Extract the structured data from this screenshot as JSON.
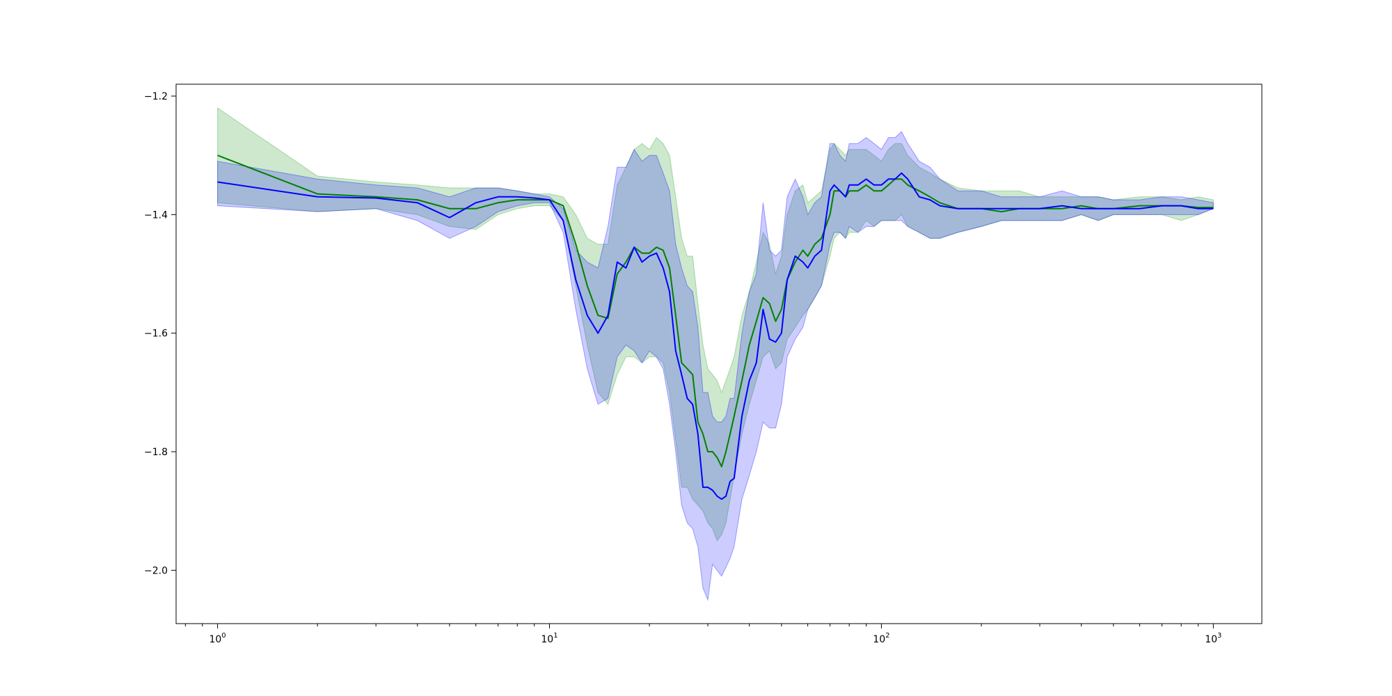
{
  "chart_data": {
    "type": "line",
    "title": "",
    "xlabel": "",
    "ylabel": "",
    "xscale": "log",
    "xlim": [
      0.75,
      1400
    ],
    "ylim": [
      -2.09,
      -1.18
    ],
    "grid": false,
    "legend": "none",
    "x_ticks": [
      {
        "value": 1,
        "base": "10",
        "exp": "0"
      },
      {
        "value": 10,
        "base": "10",
        "exp": "1"
      },
      {
        "value": 100,
        "base": "10",
        "exp": "2"
      },
      {
        "value": 1000,
        "base": "10",
        "exp": "3"
      }
    ],
    "y_ticks": [
      {
        "value": -1.2,
        "label": "−1.2"
      },
      {
        "value": -1.4,
        "label": "−1.4"
      },
      {
        "value": -1.6,
        "label": "−1.6"
      },
      {
        "value": -1.8,
        "label": "−1.8"
      },
      {
        "value": -2.0,
        "label": "−2.0"
      }
    ],
    "series": [
      {
        "color": "#008000",
        "band_color": "#2ca02c",
        "band_opacity": 0.24,
        "x": [
          1,
          2,
          3,
          4,
          5,
          6,
          7,
          8,
          9,
          10,
          11,
          12,
          13,
          14,
          15,
          16,
          17,
          18,
          19,
          20,
          21,
          22,
          23,
          24,
          25,
          26,
          27,
          28,
          29,
          30,
          31,
          32,
          33,
          34,
          35,
          36,
          38,
          40,
          42,
          44,
          46,
          48,
          50,
          52,
          55,
          58,
          60,
          63,
          66,
          70,
          72,
          75,
          78,
          80,
          85,
          90,
          95,
          100,
          105,
          110,
          115,
          120,
          130,
          140,
          150,
          170,
          200,
          230,
          260,
          300,
          350,
          400,
          450,
          500,
          600,
          700,
          800,
          900,
          1000
        ],
        "y": [
          -1.3,
          -1.365,
          -1.37,
          -1.375,
          -1.39,
          -1.39,
          -1.38,
          -1.375,
          -1.375,
          -1.375,
          -1.385,
          -1.45,
          -1.52,
          -1.57,
          -1.575,
          -1.5,
          -1.48,
          -1.455,
          -1.465,
          -1.465,
          -1.455,
          -1.46,
          -1.49,
          -1.57,
          -1.65,
          -1.66,
          -1.67,
          -1.75,
          -1.77,
          -1.8,
          -1.8,
          -1.81,
          -1.825,
          -1.8,
          -1.77,
          -1.74,
          -1.68,
          -1.62,
          -1.58,
          -1.54,
          -1.55,
          -1.58,
          -1.56,
          -1.51,
          -1.48,
          -1.46,
          -1.47,
          -1.45,
          -1.44,
          -1.4,
          -1.36,
          -1.36,
          -1.37,
          -1.36,
          -1.36,
          -1.35,
          -1.36,
          -1.36,
          -1.35,
          -1.34,
          -1.34,
          -1.35,
          -1.36,
          -1.37,
          -1.38,
          -1.39,
          -1.39,
          -1.395,
          -1.39,
          -1.39,
          -1.39,
          -1.385,
          -1.39,
          -1.39,
          -1.385,
          -1.385,
          -1.385,
          -1.388,
          -1.388
        ],
        "y_lower": [
          -1.38,
          -1.395,
          -1.39,
          -1.4,
          -1.42,
          -1.425,
          -1.4,
          -1.39,
          -1.385,
          -1.385,
          -1.41,
          -1.52,
          -1.62,
          -1.7,
          -1.72,
          -1.67,
          -1.64,
          -1.64,
          -1.65,
          -1.64,
          -1.64,
          -1.65,
          -1.7,
          -1.78,
          -1.86,
          -1.86,
          -1.88,
          -1.89,
          -1.9,
          -1.92,
          -1.93,
          -1.95,
          -1.94,
          -1.92,
          -1.88,
          -1.84,
          -1.77,
          -1.72,
          -1.68,
          -1.64,
          -1.63,
          -1.66,
          -1.65,
          -1.61,
          -1.59,
          -1.57,
          -1.56,
          -1.54,
          -1.52,
          -1.47,
          -1.44,
          -1.43,
          -1.44,
          -1.43,
          -1.43,
          -1.41,
          -1.42,
          -1.41,
          -1.41,
          -1.41,
          -1.4,
          -1.42,
          -1.43,
          -1.44,
          -1.44,
          -1.43,
          -1.42,
          -1.41,
          -1.41,
          -1.41,
          -1.41,
          -1.4,
          -1.41,
          -1.4,
          -1.4,
          -1.4,
          -1.41,
          -1.4,
          -1.39
        ],
        "y_upper": [
          -1.22,
          -1.335,
          -1.345,
          -1.35,
          -1.355,
          -1.355,
          -1.355,
          -1.36,
          -1.365,
          -1.365,
          -1.37,
          -1.4,
          -1.44,
          -1.45,
          -1.45,
          -1.35,
          -1.32,
          -1.29,
          -1.28,
          -1.29,
          -1.27,
          -1.28,
          -1.3,
          -1.37,
          -1.44,
          -1.47,
          -1.47,
          -1.55,
          -1.62,
          -1.66,
          -1.67,
          -1.68,
          -1.7,
          -1.68,
          -1.66,
          -1.64,
          -1.57,
          -1.53,
          -1.48,
          -1.43,
          -1.45,
          -1.5,
          -1.47,
          -1.4,
          -1.36,
          -1.35,
          -1.38,
          -1.37,
          -1.36,
          -1.29,
          -1.28,
          -1.29,
          -1.3,
          -1.29,
          -1.29,
          -1.29,
          -1.3,
          -1.31,
          -1.29,
          -1.28,
          -1.28,
          -1.3,
          -1.32,
          -1.33,
          -1.34,
          -1.355,
          -1.36,
          -1.36,
          -1.36,
          -1.37,
          -1.37,
          -1.37,
          -1.37,
          -1.375,
          -1.37,
          -1.37,
          -1.375,
          -1.37,
          -1.375
        ]
      },
      {
        "color": "#0000ff",
        "band_color": "#0000ff",
        "band_opacity": 0.2,
        "x": [
          1,
          2,
          3,
          4,
          5,
          6,
          7,
          8,
          9,
          10,
          11,
          12,
          13,
          14,
          15,
          16,
          17,
          18,
          19,
          20,
          21,
          22,
          23,
          24,
          25,
          26,
          27,
          28,
          29,
          30,
          31,
          32,
          33,
          34,
          35,
          36,
          38,
          40,
          42,
          44,
          46,
          48,
          50,
          52,
          55,
          58,
          60,
          63,
          66,
          70,
          72,
          75,
          78,
          80,
          85,
          90,
          95,
          100,
          105,
          110,
          115,
          120,
          130,
          140,
          150,
          170,
          200,
          230,
          260,
          300,
          350,
          400,
          450,
          500,
          600,
          700,
          800,
          900,
          1000
        ],
        "y": [
          -1.345,
          -1.37,
          -1.372,
          -1.38,
          -1.405,
          -1.38,
          -1.37,
          -1.37,
          -1.372,
          -1.375,
          -1.41,
          -1.51,
          -1.57,
          -1.6,
          -1.57,
          -1.48,
          -1.49,
          -1.455,
          -1.48,
          -1.47,
          -1.465,
          -1.49,
          -1.53,
          -1.63,
          -1.67,
          -1.71,
          -1.72,
          -1.77,
          -1.86,
          -1.86,
          -1.865,
          -1.875,
          -1.88,
          -1.875,
          -1.85,
          -1.845,
          -1.74,
          -1.68,
          -1.65,
          -1.56,
          -1.61,
          -1.615,
          -1.6,
          -1.51,
          -1.47,
          -1.48,
          -1.49,
          -1.47,
          -1.46,
          -1.36,
          -1.35,
          -1.36,
          -1.37,
          -1.35,
          -1.35,
          -1.34,
          -1.35,
          -1.35,
          -1.34,
          -1.34,
          -1.33,
          -1.34,
          -1.37,
          -1.375,
          -1.385,
          -1.39,
          -1.39,
          -1.39,
          -1.39,
          -1.39,
          -1.385,
          -1.39,
          -1.39,
          -1.39,
          -1.39,
          -1.385,
          -1.385,
          -1.39,
          -1.39
        ],
        "y_lower": [
          -1.385,
          -1.395,
          -1.39,
          -1.41,
          -1.44,
          -1.42,
          -1.395,
          -1.385,
          -1.38,
          -1.38,
          -1.43,
          -1.56,
          -1.66,
          -1.72,
          -1.71,
          -1.64,
          -1.62,
          -1.63,
          -1.65,
          -1.63,
          -1.64,
          -1.66,
          -1.72,
          -1.8,
          -1.89,
          -1.92,
          -1.93,
          -1.96,
          -2.03,
          -2.05,
          -1.99,
          -2.0,
          -2.01,
          -1.995,
          -1.98,
          -1.96,
          -1.88,
          -1.84,
          -1.8,
          -1.75,
          -1.76,
          -1.76,
          -1.72,
          -1.64,
          -1.61,
          -1.59,
          -1.56,
          -1.54,
          -1.52,
          -1.45,
          -1.43,
          -1.43,
          -1.44,
          -1.42,
          -1.43,
          -1.42,
          -1.42,
          -1.41,
          -1.41,
          -1.41,
          -1.41,
          -1.42,
          -1.43,
          -1.44,
          -1.44,
          -1.43,
          -1.42,
          -1.41,
          -1.41,
          -1.41,
          -1.41,
          -1.4,
          -1.41,
          -1.4,
          -1.4,
          -1.4,
          -1.4,
          -1.4,
          -1.39
        ],
        "y_upper": [
          -1.31,
          -1.34,
          -1.35,
          -1.355,
          -1.37,
          -1.355,
          -1.355,
          -1.36,
          -1.365,
          -1.37,
          -1.39,
          -1.46,
          -1.48,
          -1.49,
          -1.42,
          -1.32,
          -1.32,
          -1.29,
          -1.31,
          -1.3,
          -1.3,
          -1.33,
          -1.36,
          -1.45,
          -1.49,
          -1.52,
          -1.53,
          -1.59,
          -1.7,
          -1.7,
          -1.74,
          -1.75,
          -1.75,
          -1.74,
          -1.71,
          -1.71,
          -1.6,
          -1.53,
          -1.5,
          -1.38,
          -1.46,
          -1.47,
          -1.46,
          -1.37,
          -1.34,
          -1.37,
          -1.4,
          -1.38,
          -1.37,
          -1.28,
          -1.28,
          -1.3,
          -1.31,
          -1.28,
          -1.28,
          -1.27,
          -1.28,
          -1.29,
          -1.27,
          -1.27,
          -1.26,
          -1.28,
          -1.31,
          -1.32,
          -1.34,
          -1.36,
          -1.36,
          -1.37,
          -1.37,
          -1.37,
          -1.36,
          -1.37,
          -1.37,
          -1.375,
          -1.375,
          -1.37,
          -1.37,
          -1.375,
          -1.38
        ]
      }
    ]
  }
}
